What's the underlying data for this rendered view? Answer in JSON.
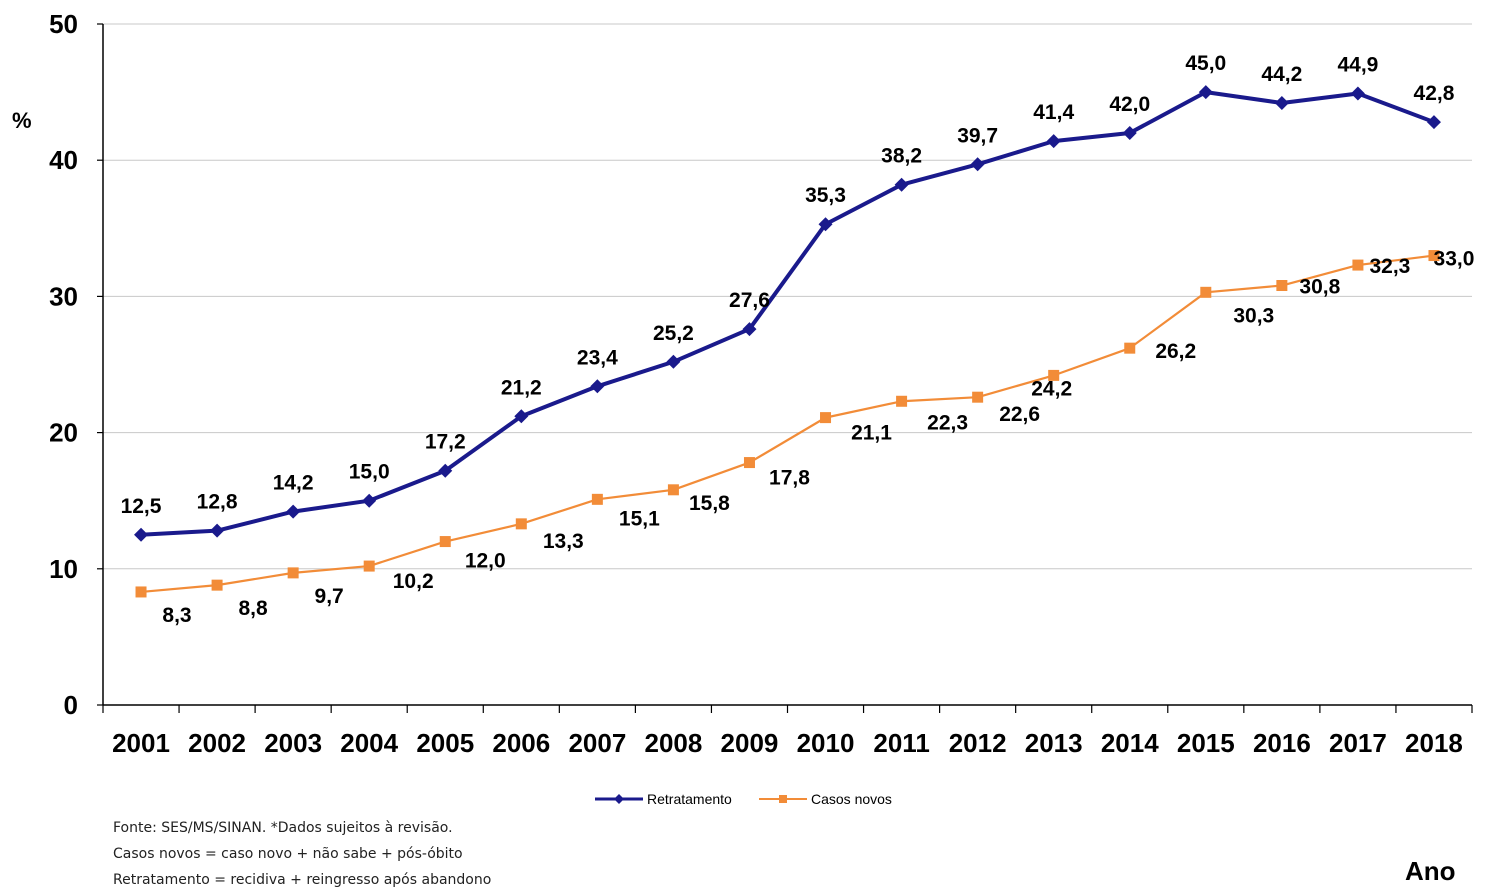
{
  "chart_data": {
    "type": "line",
    "ylabel": "%",
    "xlabel": "Ano",
    "ylim": [
      0,
      50
    ],
    "yticks": [
      0,
      10,
      20,
      30,
      40,
      50
    ],
    "grid": true,
    "legend_position": "bottom-center",
    "categories": [
      "2001",
      "2002",
      "2003",
      "2004",
      "2005",
      "2006",
      "2007",
      "2008",
      "2009",
      "2010",
      "2011",
      "2012",
      "2013",
      "2014",
      "2015",
      "2016",
      "2017",
      "2018"
    ],
    "series": [
      {
        "name": "Retratamento",
        "color": "#1a1a8c",
        "marker": "diamond",
        "values": [
          12.5,
          12.8,
          14.2,
          15.0,
          17.2,
          21.2,
          23.4,
          25.2,
          27.6,
          35.3,
          38.2,
          39.7,
          41.4,
          42.0,
          45.0,
          44.2,
          44.9,
          42.8
        ],
        "labels": [
          "12,5",
          "12,8",
          "14,2",
          "15,0",
          "17,2",
          "21,2",
          "23,4",
          "25,2",
          "27,6",
          "35,3",
          "38,2",
          "39,7",
          "41,4",
          "42,0",
          "45,0",
          "44,2",
          "44,9",
          "42,8"
        ]
      },
      {
        "name": "Casos novos",
        "color": "#f28c38",
        "marker": "square",
        "values": [
          8.3,
          8.8,
          9.7,
          10.2,
          12.0,
          13.3,
          15.1,
          15.8,
          17.8,
          21.1,
          22.3,
          22.6,
          24.2,
          26.2,
          30.3,
          30.8,
          32.3,
          33.0
        ],
        "labels": [
          "8,3",
          "8,8",
          "9,7",
          "10,2",
          "12,0",
          "13,3",
          "15,1",
          "15,8",
          "17,8",
          "21,1",
          "22,3",
          "22,6",
          "24,2",
          "26,2",
          "30,3",
          "30,8",
          "32,3",
          "33,0"
        ]
      }
    ]
  },
  "footnotes": [
    "Fonte: SES/MS/SINAN. *Dados sujeitos à revisão.",
    "Casos novos = caso novo + não sabe + pós-óbito",
    "Retratamento = recidiva + reingresso após abandono"
  ]
}
